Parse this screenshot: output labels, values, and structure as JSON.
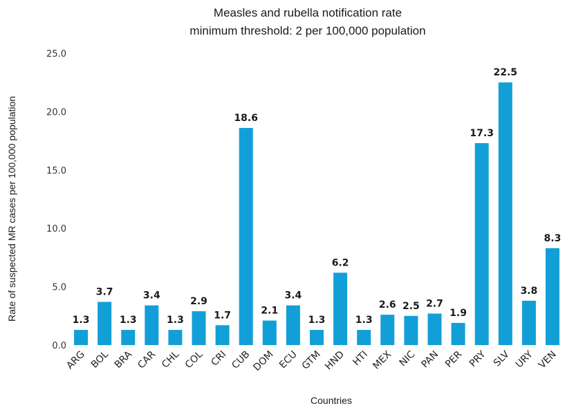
{
  "chart_data": {
    "type": "bar",
    "title": "Measles and rubella notification rate",
    "subtitle": "minimum threshold: 2 per 100,000 population",
    "xlabel": "Countries",
    "ylabel": "Rate of suspected MR cases per 100,000 population",
    "ylim": [
      0,
      25
    ],
    "yticks": [
      "0.0",
      "5.0",
      "10.0",
      "15.0",
      "20.0",
      "25.0"
    ],
    "grid": false,
    "legend": "none",
    "bar_color": "#129fd8",
    "categories": [
      "ARG",
      "BOL",
      "BRA",
      "CAR",
      "CHL",
      "COL",
      "CRI",
      "CUB",
      "DOM",
      "ECU",
      "GTM",
      "HND",
      "HTI",
      "MEX",
      "NIC",
      "PAN",
      "PER",
      "PRY",
      "SLV",
      "URY",
      "VEN"
    ],
    "values": [
      1.3,
      3.7,
      1.3,
      3.4,
      1.3,
      2.9,
      1.7,
      18.6,
      2.1,
      3.4,
      1.3,
      6.2,
      1.3,
      2.6,
      2.5,
      2.7,
      1.9,
      17.3,
      22.5,
      3.8,
      8.3
    ],
    "value_labels": [
      "1.3",
      "3.7",
      "1.3",
      "3.4",
      "1.3",
      "2.9",
      "1.7",
      "18.6",
      "2.1",
      "3.4",
      "1.3",
      "6.2",
      "1.3",
      "2.6",
      "2.5",
      "2.7",
      "1.9",
      "17.3",
      "22.5",
      "3.8",
      "8.3"
    ]
  }
}
